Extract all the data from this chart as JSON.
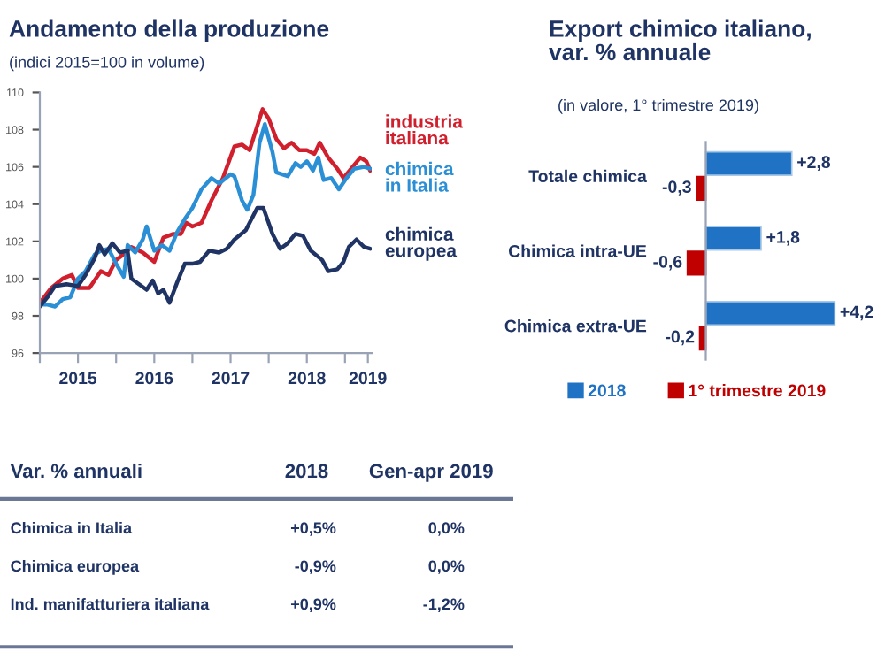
{
  "chart_data": [
    {
      "type": "line",
      "title": "Andamento della produzione",
      "subtitle": "(indici 2015=100 in volume)",
      "xlim": [
        2015,
        2019.35
      ],
      "xticks": [
        {
          "value": 2015,
          "label": null
        },
        {
          "value": 2015.5,
          "label": "2015"
        },
        {
          "value": 2016,
          "label": null
        },
        {
          "value": 2016.5,
          "label": "2016"
        },
        {
          "value": 2017,
          "label": null
        },
        {
          "value": 2017.5,
          "label": "2017"
        },
        {
          "value": 2018,
          "label": null
        },
        {
          "value": 2018.5,
          "label": "2018"
        },
        {
          "value": 2019,
          "label": null
        },
        {
          "value": 2019.3,
          "label": "2019"
        }
      ],
      "ylim": [
        96,
        110
      ],
      "yticks": [
        96,
        98,
        100,
        102,
        104,
        106,
        108,
        110
      ],
      "grid": false,
      "series": [
        {
          "name": "industria\nitaliana",
          "color": "#d0202e",
          "x": [
            2015.0,
            2015.15,
            2015.3,
            2015.42,
            2015.5,
            2015.65,
            2015.8,
            2015.9,
            2016.0,
            2016.1,
            2016.2,
            2016.35,
            2016.5,
            2016.62,
            2016.75,
            2016.85,
            2016.92,
            2017.0,
            2017.12,
            2017.25,
            2017.4,
            2017.55,
            2017.65,
            2017.75,
            2017.85,
            2017.92,
            2018.0,
            2018.1,
            2018.2,
            2018.3,
            2018.4,
            2018.5,
            2018.6,
            2018.67,
            2018.78,
            2018.9,
            2018.98,
            2019.1,
            2019.2,
            2019.28,
            2019.33
          ],
          "values": [
            98.7,
            99.5,
            100.0,
            100.2,
            99.5,
            99.5,
            100.4,
            100.2,
            101.0,
            101.3,
            101.7,
            101.4,
            100.9,
            102.2,
            102.4,
            102.4,
            103.0,
            102.8,
            103.0,
            104.2,
            105.4,
            107.1,
            107.2,
            106.9,
            108.2,
            109.1,
            108.6,
            107.5,
            107.0,
            107.3,
            106.9,
            106.9,
            106.7,
            107.3,
            106.5,
            105.9,
            105.4,
            106.0,
            106.5,
            106.3,
            105.8
          ]
        },
        {
          "name": "chimica\nin Italia",
          "color": "#2b8fd6",
          "x": [
            2015.0,
            2015.1,
            2015.2,
            2015.3,
            2015.4,
            2015.5,
            2015.6,
            2015.72,
            2015.8,
            2015.9,
            2016.0,
            2016.1,
            2016.15,
            2016.25,
            2016.35,
            2016.4,
            2016.5,
            2016.6,
            2016.7,
            2016.8,
            2016.9,
            2017.0,
            2017.12,
            2017.25,
            2017.35,
            2017.5,
            2017.55,
            2017.65,
            2017.72,
            2017.8,
            2017.88,
            2017.95,
            2018.05,
            2018.1,
            2018.25,
            2018.35,
            2018.42,
            2018.5,
            2018.58,
            2018.65,
            2018.72,
            2018.82,
            2018.92,
            2019.02,
            2019.12,
            2019.25,
            2019.33
          ],
          "values": [
            98.6,
            98.6,
            98.5,
            98.9,
            99.0,
            100.0,
            100.4,
            101.3,
            101.5,
            101.6,
            100.8,
            100.1,
            101.8,
            101.4,
            102.1,
            102.8,
            101.5,
            101.8,
            101.5,
            102.5,
            103.2,
            103.8,
            104.8,
            105.4,
            105.1,
            105.6,
            105.5,
            104.2,
            103.7,
            104.5,
            107.3,
            108.3,
            106.8,
            105.7,
            105.5,
            106.2,
            106.0,
            106.3,
            105.8,
            106.5,
            105.3,
            105.4,
            104.8,
            105.4,
            105.9,
            106.0,
            105.9
          ]
        },
        {
          "name": "chimica\neuropea",
          "color": "#1f3464",
          "x": [
            2015.0,
            2015.1,
            2015.2,
            2015.35,
            2015.5,
            2015.6,
            2015.72,
            2015.78,
            2015.85,
            2015.95,
            2016.05,
            2016.15,
            2016.2,
            2016.3,
            2016.4,
            2016.48,
            2016.55,
            2016.62,
            2016.7,
            2016.8,
            2016.9,
            2017.0,
            2017.1,
            2017.22,
            2017.35,
            2017.45,
            2017.55,
            2017.7,
            2017.85,
            2017.93,
            2018.05,
            2018.15,
            2018.25,
            2018.35,
            2018.45,
            2018.55,
            2018.7,
            2018.78,
            2018.9,
            2018.98,
            2019.05,
            2019.15,
            2019.25,
            2019.33
          ],
          "values": [
            98.5,
            99.0,
            99.6,
            99.7,
            99.6,
            100.2,
            101.1,
            101.8,
            101.3,
            101.9,
            101.4,
            101.5,
            100.0,
            99.7,
            99.4,
            99.9,
            99.2,
            99.4,
            98.7,
            99.8,
            100.8,
            100.8,
            100.9,
            101.5,
            101.4,
            101.6,
            102.1,
            102.6,
            103.8,
            103.8,
            102.4,
            101.6,
            101.9,
            102.4,
            102.3,
            101.5,
            101.0,
            100.4,
            100.5,
            100.9,
            101.7,
            102.1,
            101.7,
            101.6
          ]
        }
      ]
    },
    {
      "type": "bar",
      "orientation": "horizontal",
      "title": "Export chimico italiano,\nvar. % annuale",
      "subtitle": "(in valore, 1° trimestre 2019)",
      "categories": [
        "Totale chimica",
        "Chimica intra-UE",
        "Chimica extra-UE"
      ],
      "legend": "bottom",
      "grid": false,
      "series": [
        {
          "name": "2018",
          "color": "#1f72c4",
          "values": [
            2.8,
            1.8,
            4.2
          ],
          "value_labels": [
            "+2,8",
            "+1,8",
            "+4,2"
          ]
        },
        {
          "name": "1° trimestre 2019",
          "color": "#c00000",
          "values": [
            -0.3,
            -0.6,
            -0.2
          ],
          "value_labels": [
            "-0,3",
            "-0,6",
            "-0,2"
          ]
        }
      ]
    },
    {
      "type": "other",
      "title": "Var. % annuali",
      "categories": [
        "2018",
        "Gen-apr 2019"
      ],
      "y_categories": [
        "Chimica in Italia",
        "Chimica europea",
        "Ind. manifatturiera italiana"
      ],
      "cell_labels": [
        [
          "+0,5%",
          "0,0%"
        ],
        [
          "-0,9%",
          "0,0%"
        ],
        [
          "+0,9%",
          "-1,2%"
        ]
      ]
    }
  ]
}
